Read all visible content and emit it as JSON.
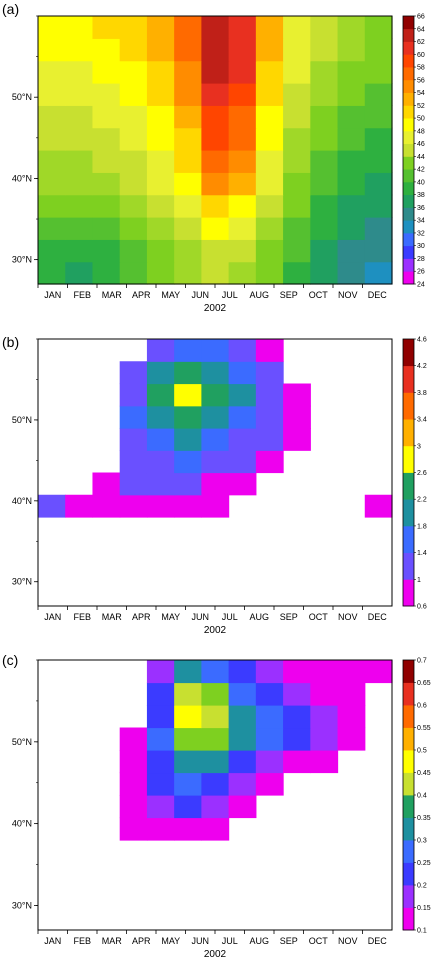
{
  "chart_data": [
    {
      "type": "heatmap",
      "panel": "(a)",
      "xlabel": "2002",
      "x_tick_labels": [
        "JAN",
        "FEB",
        "MAR",
        "APR",
        "MAY",
        "JUN",
        "JUL",
        "AUG",
        "SEP",
        "OCT",
        "NOV",
        "DEC"
      ],
      "y_tick_labels": [
        "30°N",
        "40°N",
        "50°N"
      ],
      "y_ticks": [
        30,
        40,
        50
      ],
      "ylim": [
        27,
        60
      ],
      "xlim": [
        0,
        12
      ],
      "colorbar": {
        "levels": [
          24,
          26,
          28,
          30,
          32,
          34,
          36,
          38,
          40,
          42,
          44,
          46,
          48,
          50,
          52,
          54,
          56,
          58,
          60,
          62,
          64,
          66
        ]
      },
      "color_stops": [
        "#ee00ee",
        "#9b30ff",
        "#3b3bff",
        "#3b6bff",
        "#1e90c0",
        "#2e8b8b",
        "#20a060",
        "#2eb040",
        "#55c030",
        "#7ed020",
        "#a0d828",
        "#c8e030",
        "#e8f030",
        "#ffff00",
        "#ffd700",
        "#ffb000",
        "#ff8c00",
        "#ff6a00",
        "#ff4500",
        "#e83020",
        "#c02018",
        "#900000"
      ],
      "grid": [
        [
          38,
          37,
          38,
          40,
          42,
          44,
          46,
          45,
          42,
          39,
          36,
          34,
          33
        ],
        [
          39,
          38,
          39,
          41,
          43,
          45,
          47,
          46,
          43,
          40,
          37,
          35,
          34
        ],
        [
          40,
          40,
          41,
          42,
          44,
          47,
          50,
          48,
          44,
          41,
          38,
          36,
          35
        ],
        [
          42,
          42,
          43,
          44,
          46,
          49,
          53,
          51,
          46,
          42,
          39,
          37,
          36
        ],
        [
          44,
          44,
          45,
          46,
          48,
          51,
          56,
          54,
          48,
          43,
          40,
          38,
          37
        ],
        [
          45,
          45,
          46,
          47,
          49,
          52,
          58,
          56,
          49,
          44,
          41,
          39,
          38
        ],
        [
          46,
          46,
          47,
          48,
          50,
          53,
          60,
          58,
          50,
          45,
          42,
          40,
          39
        ],
        [
          47,
          47,
          48,
          49,
          51,
          54,
          61,
          59,
          51,
          46,
          43,
          41,
          40
        ],
        [
          48,
          48,
          49,
          50,
          52,
          56,
          63,
          61,
          52,
          47,
          44,
          42,
          41
        ],
        [
          49,
          49,
          50,
          51,
          53,
          57,
          64,
          62,
          53,
          48,
          45,
          43,
          42
        ],
        [
          50,
          50,
          51,
          52,
          54,
          58,
          64,
          62,
          54,
          49,
          46,
          44,
          43
        ],
        [
          50,
          51,
          52,
          53,
          55,
          59,
          64,
          62,
          54,
          49,
          46,
          44,
          43
        ]
      ]
    },
    {
      "type": "heatmap",
      "panel": "(b)",
      "xlabel": "2002",
      "x_tick_labels": [
        "JAN",
        "FEB",
        "MAR",
        "APR",
        "MAY",
        "JUN",
        "JUL",
        "AUG",
        "SEP",
        "OCT",
        "NOV",
        "DEC"
      ],
      "y_tick_labels": [
        "30°N",
        "40°N",
        "50°N"
      ],
      "y_ticks": [
        30,
        40,
        50
      ],
      "ylim": [
        27,
        60
      ],
      "xlim": [
        0,
        12
      ],
      "colorbar": {
        "levels": [
          "0.6",
          "1",
          "1.4",
          "1.8",
          "2.2",
          "2.6",
          "3",
          "3.4",
          "3.8",
          "4.2",
          "4.6"
        ]
      },
      "color_stops": [
        "#ee00ee",
        "#6a50ff",
        "#3b6bff",
        "#1e90a0",
        "#20a060",
        "#7ed020",
        "#ffff00",
        "#ffb000",
        "#ff6a00",
        "#e83020",
        "#900000"
      ],
      "grid": [
        [
          0,
          0,
          0,
          0,
          0,
          0,
          0,
          0,
          0,
          0,
          0,
          0,
          0
        ],
        [
          0,
          0,
          0,
          0,
          0,
          0,
          0,
          0,
          0,
          0,
          0,
          0,
          0
        ],
        [
          0,
          0,
          0,
          0,
          0,
          0,
          0,
          0,
          0,
          0,
          0,
          0,
          0
        ],
        [
          0,
          0,
          0,
          0,
          0,
          0,
          0,
          0,
          0,
          0,
          0,
          0,
          0
        ],
        [
          1.0,
          0.9,
          0.9,
          0.8,
          0.8,
          0.8,
          0.7,
          0,
          0,
          0,
          0,
          0,
          0.7
        ],
        [
          0,
          0,
          0.8,
          1.0,
          1.1,
          1.0,
          0.9,
          0.8,
          0,
          0,
          0,
          0,
          0
        ],
        [
          0,
          0,
          0,
          1.1,
          1.3,
          1.4,
          1.2,
          1.1,
          0.9,
          0,
          0,
          0,
          0
        ],
        [
          0,
          0,
          0,
          1.3,
          1.6,
          1.9,
          1.6,
          1.3,
          1.1,
          0.8,
          0,
          0,
          0
        ],
        [
          0,
          0,
          0,
          1.4,
          2.0,
          2.4,
          2.1,
          1.7,
          1.2,
          0.9,
          0,
          0,
          0
        ],
        [
          0,
          0,
          0,
          1.3,
          2.2,
          3.0,
          2.5,
          1.8,
          1.2,
          0.8,
          0,
          0,
          0
        ],
        [
          0,
          0,
          0,
          1.1,
          1.9,
          2.4,
          2.0,
          1.5,
          1.0,
          0,
          0,
          0,
          0
        ],
        [
          0,
          0,
          0,
          0,
          1.2,
          1.6,
          1.4,
          1.1,
          0.8,
          0,
          0,
          0,
          0
        ]
      ]
    },
    {
      "type": "heatmap",
      "panel": "(c)",
      "xlabel": "2002",
      "x_tick_labels": [
        "JAN",
        "FEB",
        "MAR",
        "APR",
        "MAY",
        "JUN",
        "JUL",
        "AUG",
        "SEP",
        "OCT",
        "NOV",
        "DEC"
      ],
      "y_tick_labels": [
        "30°N",
        "40°N",
        "50°N"
      ],
      "y_ticks": [
        30,
        40,
        50
      ],
      "ylim": [
        27,
        60
      ],
      "xlim": [
        0,
        12
      ],
      "colorbar": {
        "levels": [
          "0.1",
          "0.15",
          "0.2",
          "0.25",
          "0.3",
          "0.35",
          "0.4",
          "0.45",
          "0.5",
          "0.55",
          "0.6",
          "0.65",
          "0.7"
        ]
      },
      "color_stops": [
        "#ee00ee",
        "#9b30ff",
        "#3b3bff",
        "#3b6bff",
        "#1e90a0",
        "#20a060",
        "#7ed020",
        "#c8e030",
        "#ffff00",
        "#ffb000",
        "#ff6a00",
        "#e83020",
        "#900000"
      ],
      "grid": [
        [
          0,
          0,
          0,
          0,
          0,
          0,
          0,
          0,
          0,
          0,
          0,
          0,
          0
        ],
        [
          0,
          0,
          0,
          0,
          0,
          0,
          0,
          0,
          0,
          0,
          0,
          0,
          0
        ],
        [
          0,
          0,
          0,
          0,
          0,
          0,
          0,
          0,
          0,
          0,
          0,
          0,
          0
        ],
        [
          0,
          0,
          0,
          0,
          0,
          0,
          0,
          0,
          0,
          0,
          0,
          0,
          0
        ],
        [
          0,
          0,
          0,
          0.1,
          0.12,
          0.12,
          0.11,
          0,
          0,
          0,
          0,
          0,
          0
        ],
        [
          0,
          0,
          0,
          0.12,
          0.16,
          0.2,
          0.17,
          0.12,
          0,
          0,
          0,
          0,
          0
        ],
        [
          0,
          0,
          0,
          0.13,
          0.2,
          0.25,
          0.22,
          0.16,
          0.12,
          0,
          0,
          0,
          0
        ],
        [
          0,
          0,
          0,
          0.12,
          0.24,
          0.32,
          0.3,
          0.22,
          0.18,
          0.14,
          0.11,
          0,
          0
        ],
        [
          0,
          0,
          0,
          0.11,
          0.25,
          0.4,
          0.4,
          0.32,
          0.28,
          0.24,
          0.18,
          0.13,
          0
        ],
        [
          0,
          0,
          0,
          0,
          0.24,
          0.52,
          0.46,
          0.34,
          0.28,
          0.22,
          0.16,
          0.12,
          0
        ],
        [
          0,
          0,
          0,
          0,
          0.22,
          0.48,
          0.4,
          0.26,
          0.2,
          0.16,
          0.12,
          0.1,
          0
        ],
        [
          0,
          0,
          0,
          0,
          0.16,
          0.3,
          0.28,
          0.2,
          0.16,
          0.14,
          0.12,
          0.1,
          0.1
        ]
      ]
    }
  ]
}
